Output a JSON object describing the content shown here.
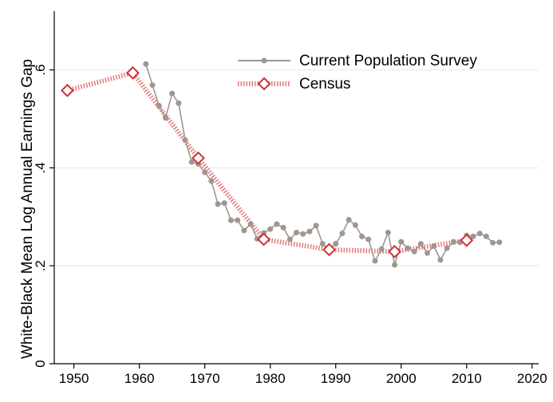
{
  "chart_data": {
    "type": "line",
    "title": "",
    "xlabel": "",
    "ylabel": "White-Black Mean Log Annual Earnings Gap",
    "xlim": [
      1947,
      2021
    ],
    "ylim": [
      0,
      0.72
    ],
    "x_ticks": [
      1950,
      1960,
      1970,
      1980,
      1990,
      2000,
      2010,
      2020
    ],
    "y_ticks": [
      0,
      0.2,
      0.4,
      0.6
    ],
    "x_tick_labels": [
      "1950",
      "1960",
      "1970",
      "1980",
      "1990",
      "2000",
      "2010",
      "2020"
    ],
    "y_tick_labels": [
      "0",
      ".2",
      ".4",
      ".6"
    ],
    "grid": "horizontal",
    "legend_position": "top-right",
    "series": [
      {
        "name": "Current Population Survey",
        "color": "#a09690",
        "marker": "circle",
        "x": [
          1961,
          1962,
          1963,
          1964,
          1965,
          1966,
          1967,
          1968,
          1969,
          1970,
          1971,
          1972,
          1973,
          1974,
          1975,
          1976,
          1977,
          1978,
          1979,
          1980,
          1981,
          1982,
          1983,
          1984,
          1985,
          1986,
          1987,
          1988,
          1989,
          1990,
          1991,
          1992,
          1993,
          1994,
          1995,
          1996,
          1997,
          1998,
          1999,
          2000,
          2001,
          2002,
          2003,
          2004,
          2005,
          2006,
          2007,
          2008,
          2009,
          2010,
          2011,
          2012,
          2013,
          2014,
          2015
        ],
        "y": [
          0.612,
          0.569,
          0.527,
          0.502,
          0.552,
          0.532,
          0.457,
          0.412,
          0.408,
          0.391,
          0.373,
          0.326,
          0.328,
          0.293,
          0.293,
          0.272,
          0.285,
          0.255,
          0.267,
          0.275,
          0.285,
          0.278,
          0.254,
          0.268,
          0.265,
          0.27,
          0.282,
          0.245,
          0.233,
          0.245,
          0.266,
          0.294,
          0.283,
          0.26,
          0.254,
          0.21,
          0.234,
          0.268,
          0.202,
          0.249,
          0.236,
          0.229,
          0.245,
          0.226,
          0.24,
          0.212,
          0.236,
          0.249,
          0.248,
          0.262,
          0.26,
          0.266,
          0.26,
          0.247,
          0.248
        ]
      },
      {
        "name": "Census",
        "color": "#cc3333",
        "marker": "diamond",
        "x": [
          1949,
          1959,
          1969,
          1979,
          1989,
          1999,
          2010
        ],
        "y": [
          0.558,
          0.594,
          0.42,
          0.254,
          0.233,
          0.229,
          0.252
        ]
      }
    ]
  }
}
